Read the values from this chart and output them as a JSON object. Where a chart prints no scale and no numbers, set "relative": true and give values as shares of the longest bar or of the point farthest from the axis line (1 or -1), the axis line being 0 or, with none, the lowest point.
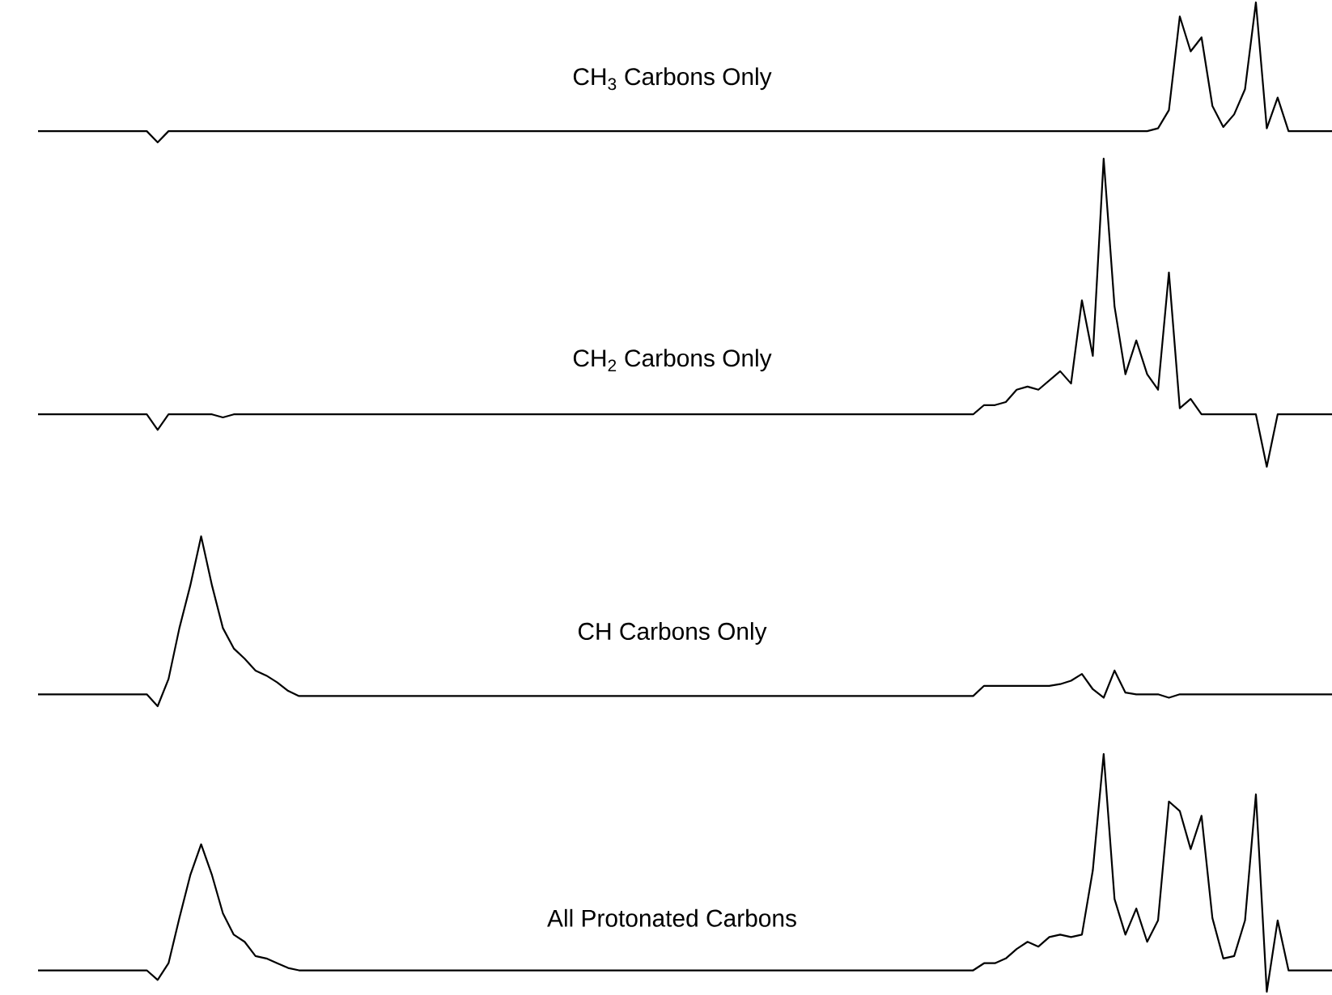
{
  "chart_data": [
    {
      "type": "line",
      "title": "CH$_{3}$ Carbons Only",
      "relative": true,
      "color": "#000000",
      "categories": [
        null,
        null,
        null,
        null,
        null,
        null,
        null,
        null,
        null,
        null,
        null,
        null,
        null,
        null,
        null,
        null,
        null,
        null,
        null,
        null,
        null,
        null,
        null,
        null,
        null,
        null,
        null,
        null,
        null,
        null,
        null,
        null,
        null,
        null,
        null,
        null,
        null,
        null,
        null,
        null,
        null,
        null,
        null,
        null,
        null,
        null,
        null,
        null,
        null,
        null,
        null,
        null,
        null,
        null,
        null,
        null,
        null,
        null,
        null,
        null,
        null,
        null,
        null,
        null,
        null,
        null,
        null,
        null,
        null,
        null,
        null,
        null,
        null,
        null,
        null,
        null,
        null,
        null,
        null,
        null,
        null,
        null,
        null,
        null,
        null,
        null,
        null,
        null,
        null,
        null,
        null,
        null,
        null,
        null,
        null,
        null,
        null,
        null,
        null,
        null,
        null,
        null,
        null,
        null,
        null,
        null,
        null,
        null,
        null,
        null,
        null,
        null,
        null,
        null,
        null,
        null,
        null,
        null,
        null,
        null
      ],
      "values": [
        0.08,
        0.08,
        0.08,
        0.08,
        0.08,
        0.08,
        0.08,
        0.08,
        0.08,
        0.08,
        0.08,
        0,
        0.08,
        0.08,
        0.08,
        0.08,
        0.08,
        0.08,
        0.08,
        0.08,
        0.08,
        0.08,
        0.08,
        0.08,
        0.08,
        0.08,
        0.08,
        0.08,
        0.08,
        0.08,
        0.08,
        0.08,
        0.08,
        0.08,
        0.08,
        0.08,
        0.08,
        0.08,
        0.08,
        0.08,
        0.08,
        0.08,
        0.08,
        0.08,
        0.08,
        0.08,
        0.08,
        0.08,
        0.08,
        0.08,
        0.08,
        0.08,
        0.08,
        0.08,
        0.08,
        0.08,
        0.08,
        0.08,
        0.08,
        0.08,
        0.08,
        0.08,
        0.08,
        0.08,
        0.08,
        0.08,
        0.08,
        0.08,
        0.08,
        0.08,
        0.08,
        0.08,
        0.08,
        0.08,
        0.08,
        0.08,
        0.08,
        0.08,
        0.08,
        0.08,
        0.08,
        0.08,
        0.08,
        0.08,
        0.08,
        0.08,
        0.08,
        0.08,
        0.08,
        0.08,
        0.08,
        0.08,
        0.08,
        0.08,
        0.08,
        0.08,
        0.08,
        0.08,
        0.08,
        0.08,
        0.08,
        0.08,
        0.08,
        0.1,
        0.23,
        0.9,
        0.65,
        0.75,
        0.26,
        0.11,
        0.2,
        0.38,
        1,
        0.1,
        0.32,
        0.08,
        0.08,
        0.08,
        0.08,
        0.08
      ]
    },
    {
      "type": "line",
      "title": "CH$_{2}$ Carbons Only",
      "relative": true,
      "color": "#000000",
      "categories": [
        null,
        null,
        null,
        null,
        null,
        null,
        null,
        null,
        null,
        null,
        null,
        null,
        null,
        null,
        null,
        null,
        null,
        null,
        null,
        null,
        null,
        null,
        null,
        null,
        null,
        null,
        null,
        null,
        null,
        null,
        null,
        null,
        null,
        null,
        null,
        null,
        null,
        null,
        null,
        null,
        null,
        null,
        null,
        null,
        null,
        null,
        null,
        null,
        null,
        null,
        null,
        null,
        null,
        null,
        null,
        null,
        null,
        null,
        null,
        null,
        null,
        null,
        null,
        null,
        null,
        null,
        null,
        null,
        null,
        null,
        null,
        null,
        null,
        null,
        null,
        null,
        null,
        null,
        null,
        null,
        null,
        null,
        null,
        null,
        null,
        null,
        null,
        null,
        null,
        null,
        null,
        null,
        null,
        null,
        null,
        null,
        null,
        null,
        null,
        null,
        null,
        null,
        null,
        null,
        null,
        null,
        null,
        null,
        null,
        null,
        null,
        null,
        null,
        null,
        null,
        null,
        null,
        null,
        null,
        null
      ],
      "values": [
        0.17,
        0.17,
        0.17,
        0.17,
        0.17,
        0.17,
        0.17,
        0.17,
        0.17,
        0.17,
        0.17,
        0.12,
        0.17,
        0.17,
        0.17,
        0.17,
        0.17,
        0.16,
        0.17,
        0.17,
        0.17,
        0.17,
        0.17,
        0.17,
        0.17,
        0.17,
        0.17,
        0.17,
        0.17,
        0.17,
        0.17,
        0.17,
        0.17,
        0.17,
        0.17,
        0.17,
        0.17,
        0.17,
        0.17,
        0.17,
        0.17,
        0.17,
        0.17,
        0.17,
        0.17,
        0.17,
        0.17,
        0.17,
        0.17,
        0.17,
        0.17,
        0.17,
        0.17,
        0.17,
        0.17,
        0.17,
        0.17,
        0.17,
        0.17,
        0.17,
        0.17,
        0.17,
        0.17,
        0.17,
        0.17,
        0.17,
        0.17,
        0.17,
        0.17,
        0.17,
        0.17,
        0.17,
        0.17,
        0.17,
        0.17,
        0.17,
        0.17,
        0.17,
        0.17,
        0.17,
        0.17,
        0.17,
        0.17,
        0.17,
        0.17,
        0.17,
        0.17,
        0.2,
        0.2,
        0.21,
        0.25,
        0.26,
        0.25,
        0.28,
        0.31,
        0.27,
        0.54,
        0.36,
        1,
        0.52,
        0.3,
        0.41,
        0.3,
        0.25,
        0.63,
        0.19,
        0.22,
        0.17,
        0.17,
        0.17,
        0.17,
        0.17,
        0.17,
        0,
        0.17,
        0.17,
        0.17,
        0.17,
        0.17,
        0.17
      ]
    },
    {
      "type": "line",
      "title": "CH Carbons Only",
      "relative": true,
      "color": "#000000",
      "categories": [
        null,
        null,
        null,
        null,
        null,
        null,
        null,
        null,
        null,
        null,
        null,
        null,
        null,
        null,
        null,
        null,
        null,
        null,
        null,
        null,
        null,
        null,
        null,
        null,
        null,
        null,
        null,
        null,
        null,
        null,
        null,
        null,
        null,
        null,
        null,
        null,
        null,
        null,
        null,
        null,
        null,
        null,
        null,
        null,
        null,
        null,
        null,
        null,
        null,
        null,
        null,
        null,
        null,
        null,
        null,
        null,
        null,
        null,
        null,
        null,
        null,
        null,
        null,
        null,
        null,
        null,
        null,
        null,
        null,
        null,
        null,
        null,
        null,
        null,
        null,
        null,
        null,
        null,
        null,
        null,
        null,
        null,
        null,
        null,
        null,
        null,
        null,
        null,
        null,
        null,
        null,
        null,
        null,
        null,
        null,
        null,
        null,
        null,
        null,
        null,
        null,
        null,
        null,
        null,
        null,
        null,
        null,
        null,
        null,
        null,
        null,
        null,
        null,
        null,
        null,
        null,
        null,
        null,
        null,
        null
      ],
      "values": [
        0.07,
        0.07,
        0.07,
        0.07,
        0.07,
        0.07,
        0.07,
        0.07,
        0.07,
        0.07,
        0.07,
        0,
        0.16,
        0.46,
        0.71,
        1,
        0.71,
        0.46,
        0.34,
        0.28,
        0.21,
        0.18,
        0.14,
        0.09,
        0.06,
        0.06,
        0.06,
        0.06,
        0.06,
        0.06,
        0.06,
        0.06,
        0.06,
        0.06,
        0.06,
        0.06,
        0.06,
        0.06,
        0.06,
        0.06,
        0.06,
        0.06,
        0.06,
        0.06,
        0.06,
        0.06,
        0.06,
        0.06,
        0.06,
        0.06,
        0.06,
        0.06,
        0.06,
        0.06,
        0.06,
        0.06,
        0.06,
        0.06,
        0.06,
        0.06,
        0.06,
        0.06,
        0.06,
        0.06,
        0.06,
        0.06,
        0.06,
        0.06,
        0.06,
        0.06,
        0.06,
        0.06,
        0.06,
        0.06,
        0.06,
        0.06,
        0.06,
        0.06,
        0.06,
        0.06,
        0.06,
        0.06,
        0.06,
        0.06,
        0.06,
        0.06,
        0.06,
        0.12,
        0.12,
        0.12,
        0.12,
        0.12,
        0.12,
        0.12,
        0.13,
        0.15,
        0.19,
        0.1,
        0.05,
        0.21,
        0.08,
        0.07,
        0.07,
        0.07,
        0.05,
        0.07,
        0.07,
        0.07,
        0.07,
        0.07,
        0.07,
        0.07,
        0.07,
        0.07,
        0.07,
        0.07,
        0.07,
        0.07,
        0.07,
        0.07
      ]
    },
    {
      "type": "line",
      "title": "All Protonated Carbons",
      "relative": true,
      "color": "#000000",
      "categories": [
        null,
        null,
        null,
        null,
        null,
        null,
        null,
        null,
        null,
        null,
        null,
        null,
        null,
        null,
        null,
        null,
        null,
        null,
        null,
        null,
        null,
        null,
        null,
        null,
        null,
        null,
        null,
        null,
        null,
        null,
        null,
        null,
        null,
        null,
        null,
        null,
        null,
        null,
        null,
        null,
        null,
        null,
        null,
        null,
        null,
        null,
        null,
        null,
        null,
        null,
        null,
        null,
        null,
        null,
        null,
        null,
        null,
        null,
        null,
        null,
        null,
        null,
        null,
        null,
        null,
        null,
        null,
        null,
        null,
        null,
        null,
        null,
        null,
        null,
        null,
        null,
        null,
        null,
        null,
        null,
        null,
        null,
        null,
        null,
        null,
        null,
        null,
        null,
        null,
        null,
        null,
        null,
        null,
        null,
        null,
        null,
        null,
        null,
        null,
        null,
        null,
        null,
        null,
        null,
        null,
        null,
        null,
        null,
        null,
        null,
        null,
        null,
        null,
        null,
        null,
        null,
        null,
        null,
        null,
        null
      ],
      "values": [
        0.09,
        0.09,
        0.09,
        0.09,
        0.09,
        0.09,
        0.09,
        0.09,
        0.09,
        0.09,
        0.09,
        0.05,
        0.12,
        0.31,
        0.49,
        0.62,
        0.49,
        0.33,
        0.24,
        0.21,
        0.15,
        0.14,
        0.12,
        0.1,
        0.09,
        0.09,
        0.09,
        0.09,
        0.09,
        0.09,
        0.09,
        0.09,
        0.09,
        0.09,
        0.09,
        0.09,
        0.09,
        0.09,
        0.09,
        0.09,
        0.09,
        0.09,
        0.09,
        0.09,
        0.09,
        0.09,
        0.09,
        0.09,
        0.09,
        0.09,
        0.09,
        0.09,
        0.09,
        0.09,
        0.09,
        0.09,
        0.09,
        0.09,
        0.09,
        0.09,
        0.09,
        0.09,
        0.09,
        0.09,
        0.09,
        0.09,
        0.09,
        0.09,
        0.09,
        0.09,
        0.09,
        0.09,
        0.09,
        0.09,
        0.09,
        0.09,
        0.09,
        0.09,
        0.09,
        0.09,
        0.09,
        0.09,
        0.09,
        0.09,
        0.09,
        0.09,
        0.09,
        0.12,
        0.12,
        0.14,
        0.18,
        0.21,
        0.19,
        0.23,
        0.24,
        0.23,
        0.24,
        0.51,
        1,
        0.39,
        0.24,
        0.35,
        0.21,
        0.3,
        0.8,
        0.76,
        0.6,
        0.74,
        0.31,
        0.14,
        0.15,
        0.3,
        0.83,
        0,
        0.3,
        0.09,
        0.09,
        0.09,
        0.09,
        0.09
      ]
    }
  ]
}
